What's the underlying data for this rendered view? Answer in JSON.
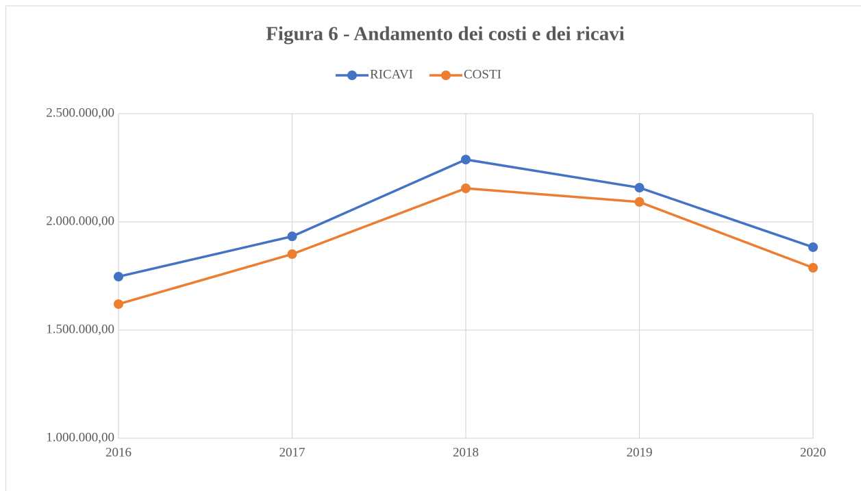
{
  "chart_data": {
    "type": "line",
    "title": "Figura 6 - Andamento dei costi e dei ricavi",
    "categories": [
      "2016",
      "2017",
      "2018",
      "2019",
      "2020"
    ],
    "series": [
      {
        "name": "RICAVI",
        "color": "#4472c4",
        "values": [
          1747000,
          1933000,
          2288000,
          2158000,
          1883000
        ]
      },
      {
        "name": "COSTI",
        "color": "#ed7d31",
        "values": [
          1620000,
          1851000,
          2155000,
          2092000,
          1788000
        ]
      }
    ],
    "ylim": [
      1000000,
      2500000
    ],
    "yticks": [
      {
        "value": 1000000,
        "label": "1.000.000,00"
      },
      {
        "value": 1500000,
        "label": "1.500.000,00"
      },
      {
        "value": 2000000,
        "label": "2.000.000,00"
      },
      {
        "value": 2500000,
        "label": "2.500.000,00"
      }
    ],
    "grid": true,
    "legend": "top"
  }
}
